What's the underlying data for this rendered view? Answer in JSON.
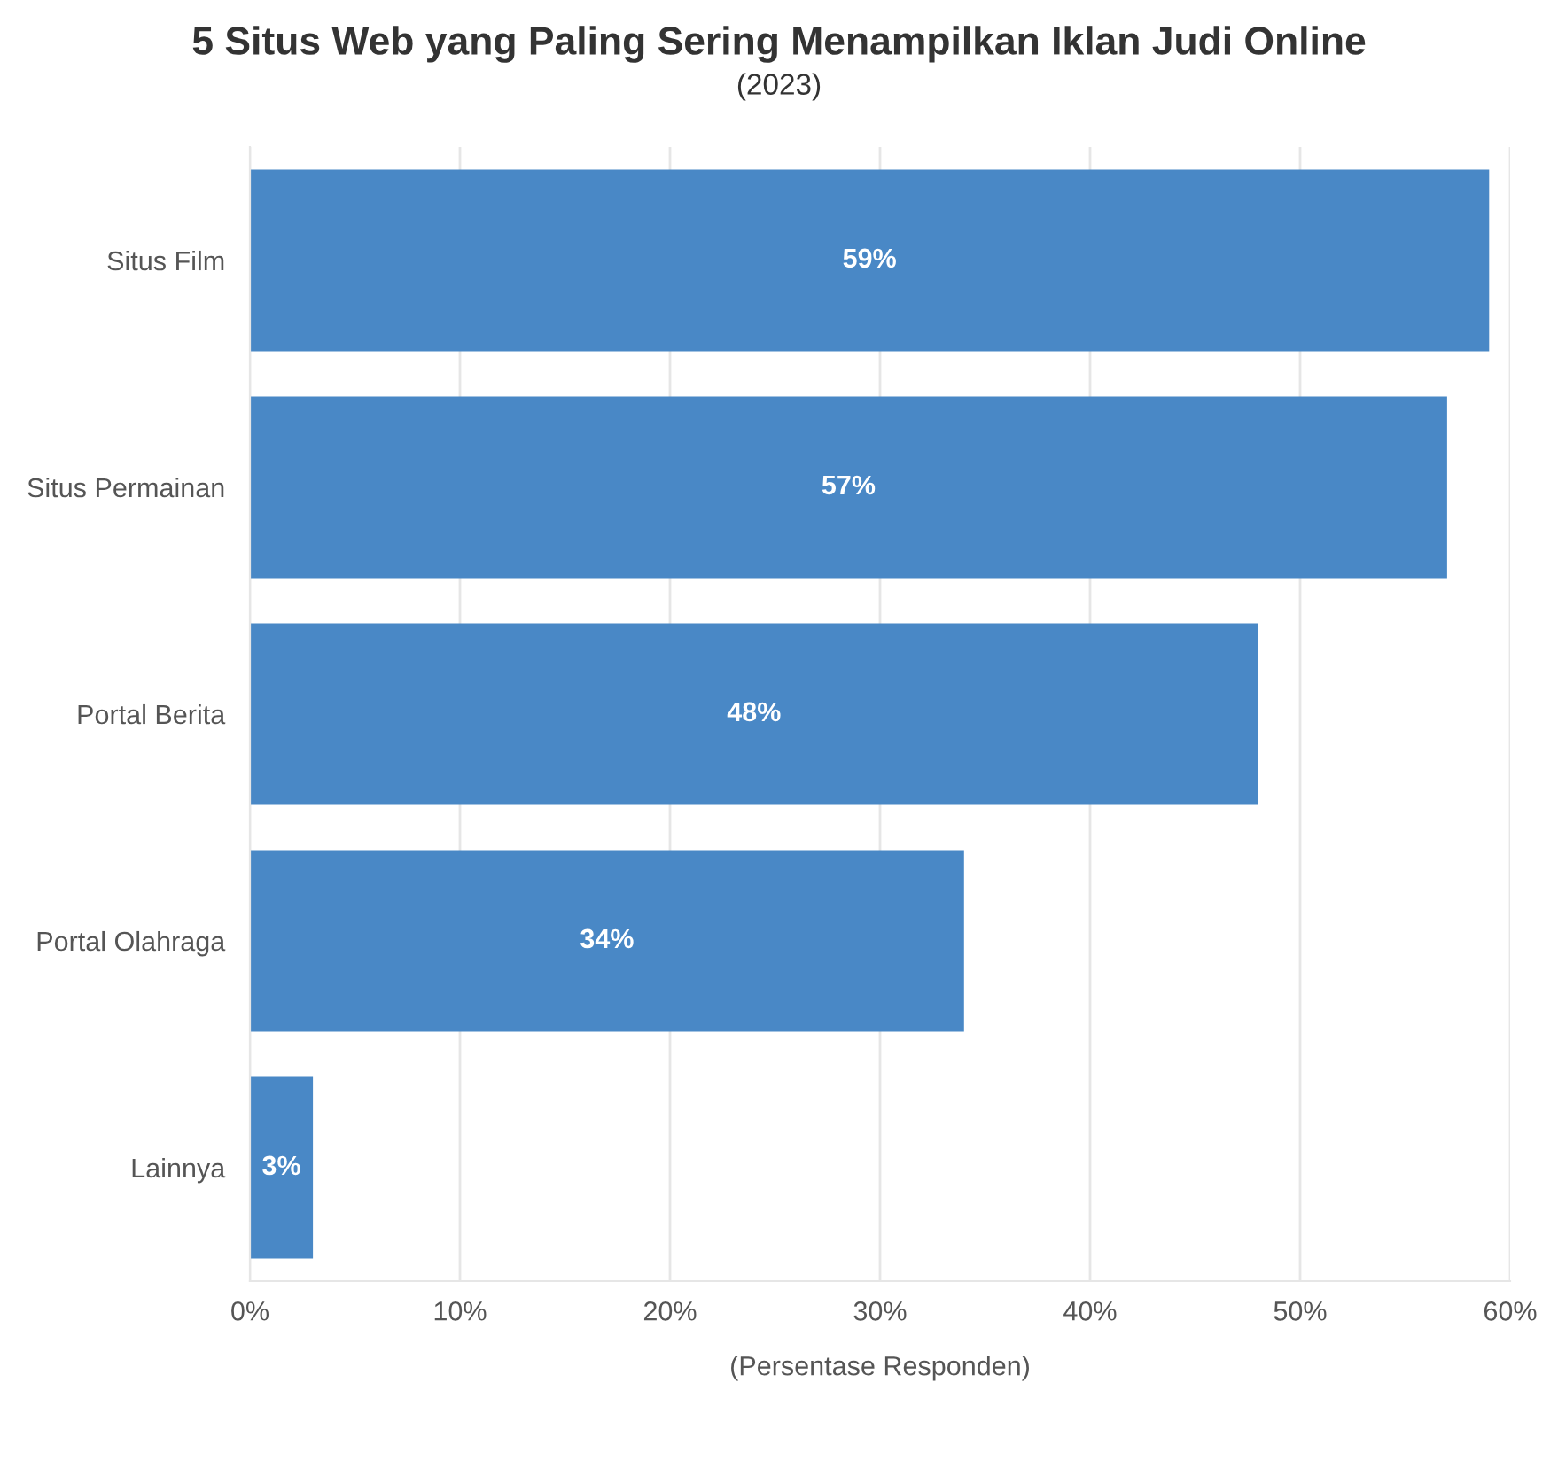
{
  "chart_data": {
    "type": "bar",
    "orientation": "horizontal",
    "title": "5 Situs Web yang Paling Sering Menampilkan Iklan Judi Online",
    "subtitle": "(2023)",
    "xlabel": "(Persentase Responden)",
    "categories": [
      "Situs Film",
      "Situs Permainan",
      "Portal Berita",
      "Portal Olahraga",
      "Lainnya"
    ],
    "values": [
      59,
      57,
      48,
      34,
      3
    ],
    "color": "#4384c4",
    "value_labels": [
      "59%",
      "57%",
      "48%",
      "34%",
      "3%"
    ],
    "xlim": [
      0,
      60
    ],
    "xticks": [
      {
        "value": 0,
        "label": "0%"
      },
      {
        "value": 10,
        "label": "10%"
      },
      {
        "value": 20,
        "label": "20%"
      },
      {
        "value": 30,
        "label": "30%"
      },
      {
        "value": 40,
        "label": "40%"
      },
      {
        "value": 50,
        "label": "50%"
      },
      {
        "value": 60,
        "label": "60%"
      }
    ],
    "grid": "x"
  }
}
